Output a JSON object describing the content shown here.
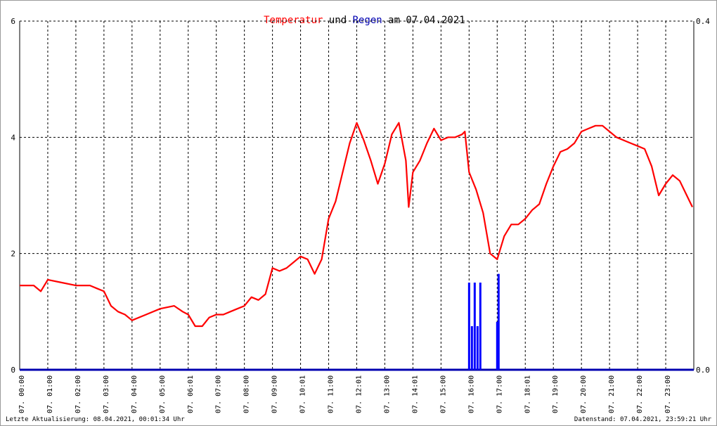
{
  "title": {
    "part1": "Temperatur",
    "part2": " und ",
    "part3": "Regen",
    "part4": " am 07.04.2021",
    "color1": "#ff0000",
    "color3": "#0000b0",
    "color_rest": "#000000"
  },
  "footer": {
    "left": "Letzte Aktualisierung: 08.04.2021, 00:01:34 Uhr",
    "right": "Datenstand: 07.04.2021, 23:59:21 Uhr"
  },
  "chart_data": {
    "type": "line",
    "grid": true,
    "x_unit": "hours since 00:00",
    "xlim": [
      0,
      24
    ],
    "ylim_left": [
      0,
      6
    ],
    "ylim_right": [
      0,
      0.4
    ],
    "left_ticks": [
      "0",
      "2",
      "4",
      "6"
    ],
    "right_ticks": [
      "0.0",
      "0.4"
    ],
    "x_tick_labels": [
      "07. 00:00",
      "07. 01:00",
      "07. 02:00",
      "07. 03:00",
      "07. 04:00",
      "07. 05:00",
      "07. 06:01",
      "07. 07:00",
      "07. 08:00",
      "07. 09:00",
      "07. 10:01",
      "07. 11:00",
      "07. 12:01",
      "07. 13:00",
      "07. 14:01",
      "07. 15:00",
      "07. 16:00",
      "07. 17:00",
      "07. 18:01",
      "07. 19:00",
      "07. 20:00",
      "07. 21:00",
      "07. 22:00",
      "07. 23:00"
    ],
    "series": [
      {
        "axis": "left",
        "color": "#ff0000",
        "x": [
          0,
          0.5,
          0.75,
          1,
          1.5,
          2,
          2.5,
          2.75,
          3,
          3.25,
          3.5,
          3.75,
          4,
          4.5,
          5,
          5.5,
          5.8,
          6,
          6.25,
          6.5,
          6.75,
          7,
          7.25,
          7.5,
          7.75,
          8,
          8.25,
          8.5,
          8.75,
          9,
          9.25,
          9.5,
          9.75,
          10,
          10.25,
          10.5,
          10.75,
          11,
          11.25,
          11.5,
          11.75,
          12,
          12.25,
          12.5,
          12.75,
          13,
          13.25,
          13.5,
          13.75,
          13.85,
          14,
          14.25,
          14.5,
          14.75,
          15,
          15.25,
          15.5,
          15.75,
          15.85,
          16,
          16.25,
          16.5,
          16.75,
          17,
          17.25,
          17.5,
          17.75,
          18,
          18.25,
          18.5,
          18.75,
          19,
          19.25,
          19.5,
          19.75,
          20,
          20.25,
          20.5,
          20.75,
          21,
          21.25,
          21.5,
          21.75,
          22,
          22.25,
          22.5,
          22.75,
          23,
          23.25,
          23.5,
          23.75,
          23.95
        ],
        "y": [
          1.45,
          1.45,
          1.35,
          1.55,
          1.5,
          1.45,
          1.45,
          1.4,
          1.35,
          1.1,
          1.0,
          0.95,
          0.85,
          0.95,
          1.05,
          1.1,
          1.0,
          0.95,
          0.75,
          0.75,
          0.9,
          0.95,
          0.95,
          1.0,
          1.05,
          1.1,
          1.25,
          1.2,
          1.3,
          1.75,
          1.7,
          1.75,
          1.85,
          1.95,
          1.9,
          1.65,
          1.9,
          2.6,
          2.9,
          3.4,
          3.9,
          4.25,
          3.95,
          3.6,
          3.2,
          3.55,
          4.05,
          4.25,
          3.6,
          2.8,
          3.4,
          3.6,
          3.9,
          4.15,
          3.95,
          4.0,
          4.0,
          4.05,
          4.1,
          3.4,
          3.1,
          2.7,
          2.0,
          1.9,
          2.3,
          2.5,
          2.5,
          2.6,
          2.75,
          2.85,
          3.2,
          3.5,
          3.75,
          3.8,
          3.9,
          4.1,
          4.15,
          4.2,
          4.2,
          4.1,
          4.0,
          3.95,
          3.9,
          3.85,
          3.8,
          3.5,
          3.0,
          3.2,
          3.35,
          3.25,
          3.0,
          2.8
        ]
      },
      {
        "axis": "right",
        "color": "#0000ff",
        "type": "bar",
        "x": [
          16.0,
          16.1,
          16.2,
          16.3,
          16.4,
          17.0,
          17.05
        ],
        "y": [
          0.1,
          0.05,
          0.1,
          0.05,
          0.1,
          0.055,
          0.11
        ]
      }
    ]
  }
}
